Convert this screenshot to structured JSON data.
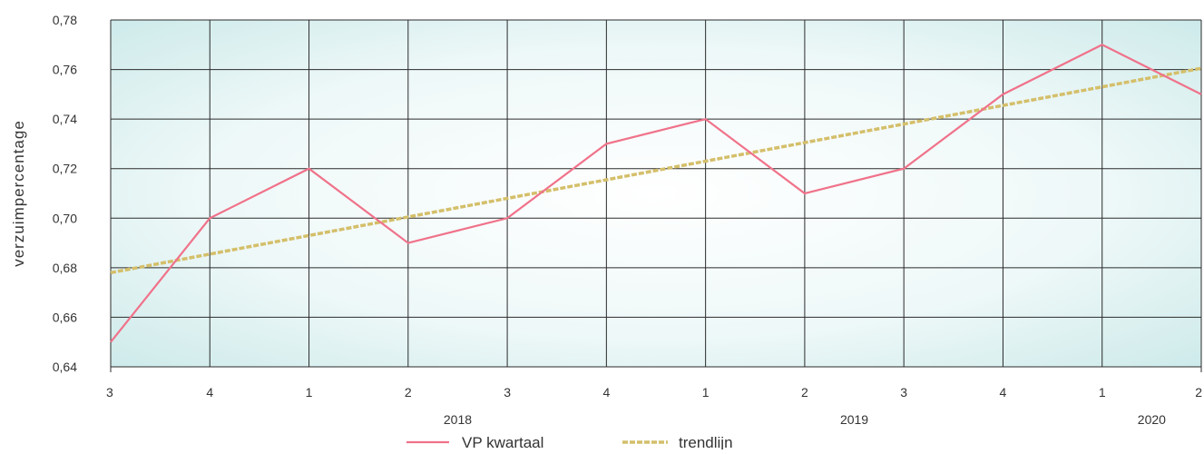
{
  "chart_data": {
    "type": "line",
    "ylabel": "verzuimpercentage",
    "xlabel": "",
    "ylim": [
      0.64,
      0.78
    ],
    "y_ticks": [
      "0,64",
      "0,66",
      "0,68",
      "0,70",
      "0,72",
      "0,74",
      "0,76",
      "0,78"
    ],
    "y_tick_values": [
      0.64,
      0.66,
      0.68,
      0.7,
      0.72,
      0.74,
      0.76,
      0.78
    ],
    "categories": [
      "3",
      "4",
      "1",
      "2",
      "3",
      "4",
      "1",
      "2",
      "3",
      "4",
      "1",
      "2"
    ],
    "year_groups": [
      {
        "label": "2018",
        "start_index": 2,
        "end_index": 5
      },
      {
        "label": "2019",
        "start_index": 6,
        "end_index": 9
      },
      {
        "label": "2020",
        "start_index": 10,
        "end_index": 11
      }
    ],
    "grid": true,
    "legend_position": "bottom",
    "series": [
      {
        "name": "VP kwartaal",
        "color": "#f0728a",
        "style": "solid",
        "values": [
          0.65,
          0.7,
          0.72,
          0.69,
          0.7,
          0.73,
          0.74,
          0.71,
          0.72,
          0.75,
          0.77,
          0.75
        ]
      },
      {
        "name": "trendlijn",
        "color": "#d4bf6a",
        "style": "dashed",
        "values": [
          0.678,
          0.6855,
          0.693,
          0.7005,
          0.708,
          0.7155,
          0.723,
          0.7305,
          0.738,
          0.7455,
          0.753,
          0.7605
        ]
      }
    ]
  }
}
